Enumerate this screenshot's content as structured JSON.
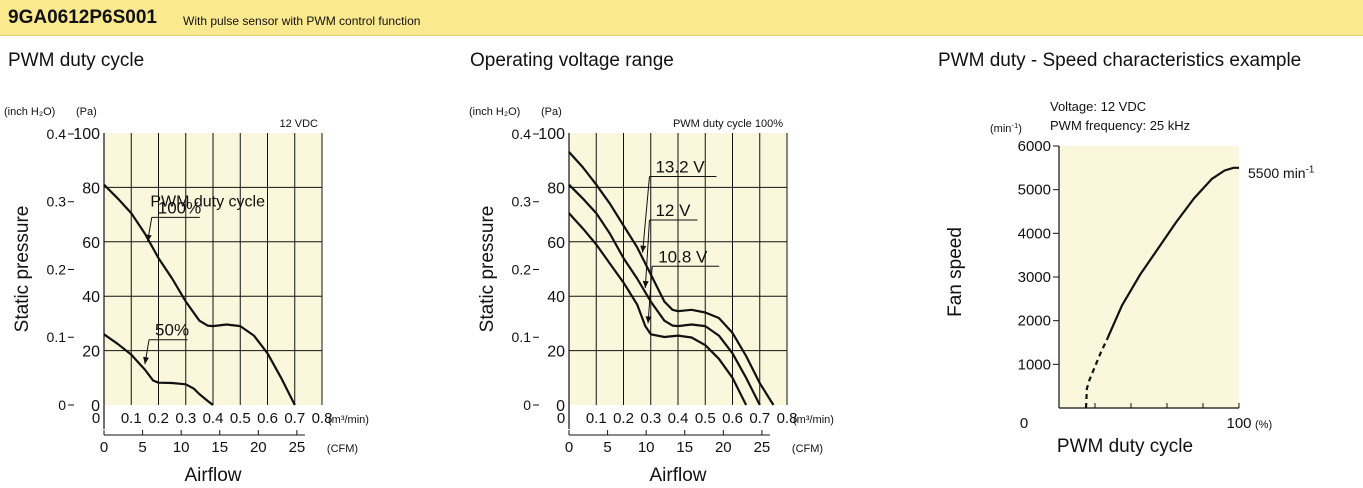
{
  "header": {
    "model": "9GA0612P6S001",
    "subtitle": "With pulse sensor with PWM control function",
    "background": "#fbe98f"
  },
  "colors": {
    "plot_bg": "#fbf7dc",
    "line": "#111111"
  },
  "chart_data": [
    {
      "type": "line",
      "title": "PWM duty cycle",
      "xlabel": "Airflow",
      "ylabel": "Static pressure",
      "x_unit_primary": "(m³/min)",
      "x_unit_secondary": "(CFM)",
      "y_unit_secondary": "(inch H₂O)",
      "y_unit_primary": "(Pa)",
      "xlim": [
        0,
        0.8
      ],
      "ylim": [
        0,
        100
      ],
      "x_ticks": [
        "0",
        "0.1",
        "0.2",
        "0.3",
        "0.4",
        "0.5",
        "0.6",
        "0.7",
        "0.8"
      ],
      "cfm_ticks": [
        "0",
        "5",
        "10",
        "15",
        "20",
        "25"
      ],
      "cfm_tick_values": [
        0,
        5,
        10,
        15,
        20,
        25
      ],
      "y_ticks": [
        "0",
        "20",
        "40",
        "60",
        "80",
        "100"
      ],
      "y2_ticks": [
        "0",
        "0.1",
        "0.2",
        "0.3",
        "0.4"
      ],
      "y2_tick_values": [
        0,
        0.1,
        0.2,
        0.3,
        0.4
      ],
      "condition": "12 VDC",
      "legend_label": "PWM duty cycle",
      "grid": true,
      "series": [
        {
          "name": "100%",
          "x": [
            0,
            0.05,
            0.1,
            0.15,
            0.2,
            0.25,
            0.3,
            0.35,
            0.38,
            0.4,
            0.45,
            0.5,
            0.55,
            0.6,
            0.65,
            0.7
          ],
          "y": [
            81,
            76,
            70.5,
            63,
            54,
            46.5,
            38,
            31,
            29.2,
            29,
            29.6,
            29,
            25.5,
            19,
            10,
            0
          ]
        },
        {
          "name": "50%",
          "x": [
            0,
            0.05,
            0.1,
            0.15,
            0.18,
            0.2,
            0.25,
            0.3,
            0.33,
            0.35,
            0.38,
            0.4
          ],
          "y": [
            26,
            22.5,
            18.5,
            13,
            9,
            8.2,
            8.1,
            7.6,
            6,
            4,
            1.5,
            0
          ]
        }
      ],
      "annotations": [
        {
          "text": "100%",
          "x": 0.16,
          "y": 60,
          "label_x": 0.19,
          "label_y": 69
        },
        {
          "text": "50%",
          "x": 0.15,
          "y": 15,
          "label_x": 0.18,
          "label_y": 24
        }
      ]
    },
    {
      "type": "line",
      "title": "Operating voltage range",
      "xlabel": "Airflow",
      "ylabel": "Static pressure",
      "x_unit_primary": "(m³/min)",
      "x_unit_secondary": "(CFM)",
      "y_unit_secondary": "(inch H₂O)",
      "y_unit_primary": "(Pa)",
      "xlim": [
        0,
        0.8
      ],
      "ylim": [
        0,
        100
      ],
      "x_ticks": [
        "0",
        "0.1",
        "0.2",
        "0.3",
        "0.4",
        "0.5",
        "0.6",
        "0.7",
        "0.8"
      ],
      "cfm_ticks": [
        "0",
        "5",
        "10",
        "15",
        "20",
        "25"
      ],
      "cfm_tick_values": [
        0,
        5,
        10,
        15,
        20,
        25
      ],
      "y_ticks": [
        "0",
        "20",
        "40",
        "60",
        "80",
        "100"
      ],
      "y2_ticks": [
        "0",
        "0.1",
        "0.2",
        "0.3",
        "0.4"
      ],
      "y2_tick_values": [
        0,
        0.1,
        0.2,
        0.3,
        0.4
      ],
      "condition": "PWM duty cycle 100%",
      "grid": true,
      "series": [
        {
          "name": "13.2 V",
          "x": [
            0,
            0.05,
            0.1,
            0.15,
            0.2,
            0.25,
            0.3,
            0.35,
            0.38,
            0.4,
            0.45,
            0.5,
            0.55,
            0.6,
            0.65,
            0.7,
            0.75
          ],
          "y": [
            93,
            87.5,
            81,
            74,
            66,
            58,
            48,
            38,
            35,
            34.5,
            35,
            34,
            32,
            26.5,
            18,
            8,
            0
          ]
        },
        {
          "name": "12 V",
          "x": [
            0,
            0.05,
            0.1,
            0.15,
            0.2,
            0.25,
            0.3,
            0.35,
            0.38,
            0.4,
            0.45,
            0.5,
            0.55,
            0.6,
            0.65,
            0.7
          ],
          "y": [
            81,
            76,
            70.5,
            63,
            54,
            46.5,
            38,
            31,
            29.2,
            29,
            29.6,
            29,
            25.5,
            19,
            10,
            0
          ]
        },
        {
          "name": "10.8 V",
          "x": [
            0,
            0.05,
            0.1,
            0.15,
            0.2,
            0.25,
            0.28,
            0.3,
            0.35,
            0.4,
            0.45,
            0.5,
            0.55,
            0.6,
            0.65
          ],
          "y": [
            70.5,
            65,
            59,
            52,
            45,
            37,
            29,
            26,
            25,
            25.5,
            24.8,
            22,
            17,
            10,
            0
          ]
        }
      ],
      "annotations": [
        {
          "text": "13.2 V",
          "x": 0.27,
          "y": 56,
          "label_x": 0.31,
          "label_y": 84
        },
        {
          "text": "12 V",
          "x": 0.28,
          "y": 43,
          "label_x": 0.31,
          "label_y": 68
        },
        {
          "text": "10.8 V",
          "x": 0.29,
          "y": 30,
          "label_x": 0.32,
          "label_y": 51
        }
      ]
    },
    {
      "type": "line",
      "title": "PWM duty - Speed characteristics example",
      "xlabel": "PWM duty cycle",
      "ylabel": "Fan speed",
      "x_unit": "(%)",
      "y_unit_base": "(min",
      "y_unit_exp": "-1",
      "y_unit_close": ")",
      "xlim": [
        0,
        100
      ],
      "ylim": [
        0,
        6000
      ],
      "x_ticks": [
        "0",
        "100"
      ],
      "x_tick_values": [
        0,
        100
      ],
      "y_ticks": [
        "1000",
        "2000",
        "3000",
        "4000",
        "5000",
        "6000"
      ],
      "y_tick_values": [
        1000,
        2000,
        3000,
        4000,
        5000,
        6000
      ],
      "condition_lines": [
        "Voltage: 12 VDC",
        "PWM frequency: 25 kHz"
      ],
      "grid": false,
      "series": [
        {
          "name": "",
          "x": [
            27,
            35,
            45,
            55,
            65,
            75,
            85,
            92,
            97,
            100
          ],
          "y": [
            1600,
            2350,
            3050,
            3650,
            4250,
            4800,
            5250,
            5440,
            5500,
            5500
          ]
        },
        {
          "name": "",
          "dashed": true,
          "x": [
            15,
            15.5,
            17,
            20,
            23,
            27
          ],
          "y": [
            0,
            450,
            650,
            950,
            1250,
            1600
          ]
        }
      ],
      "end_label_base": "5500 min",
      "end_label_exp": "-1"
    }
  ]
}
